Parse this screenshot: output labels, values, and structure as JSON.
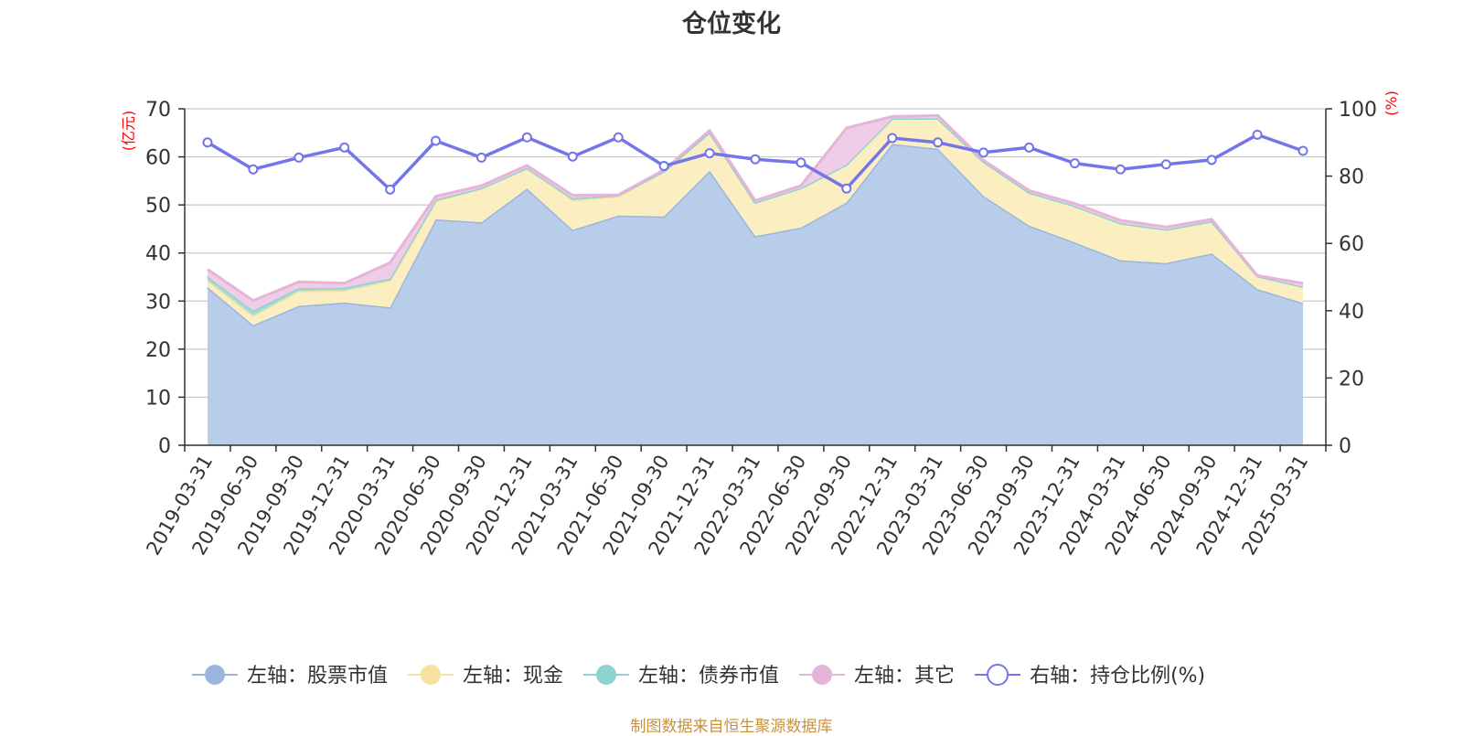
{
  "chart_data": {
    "type": "area",
    "title": "仓位变化",
    "source_note": "制图数据来自恒生聚源数据库",
    "left_axis_label": "(亿元)",
    "right_axis_label": "(%)",
    "left_ylim": [
      0,
      70
    ],
    "left_ticks": [
      0,
      10,
      20,
      30,
      40,
      50,
      60,
      70
    ],
    "right_ylim": [
      0,
      100
    ],
    "right_ticks": [
      0,
      20,
      40,
      60,
      80,
      100
    ],
    "grid": true,
    "legend_position": "bottom",
    "categories": [
      "2019-03-31",
      "2019-06-30",
      "2019-09-30",
      "2019-12-31",
      "2020-03-31",
      "2020-06-30",
      "2020-09-30",
      "2020-12-31",
      "2021-03-31",
      "2021-06-30",
      "2021-09-30",
      "2021-12-31",
      "2022-03-31",
      "2022-06-30",
      "2022-09-30",
      "2022-12-31",
      "2023-03-31",
      "2023-06-30",
      "2023-09-30",
      "2023-12-31",
      "2024-03-31",
      "2024-06-30",
      "2024-09-30",
      "2024-12-31",
      "2025-03-31"
    ],
    "series": [
      {
        "name": "左轴：股票市值",
        "axis": "left",
        "kind": "stacked-area",
        "color": "#9bb5df",
        "fill": "#b8cdea",
        "values": [
          32.9,
          25.0,
          29.0,
          29.7,
          28.7,
          47.0,
          46.4,
          53.4,
          44.8,
          47.8,
          47.6,
          57.1,
          43.5,
          45.3,
          50.5,
          62.7,
          61.7,
          51.9,
          45.7,
          42.2,
          38.5,
          37.9,
          39.9,
          32.5,
          29.6
        ]
      },
      {
        "name": "左轴：现金",
        "axis": "left",
        "kind": "stacked-area",
        "color": "#f7e1a0",
        "fill": "#fbefc2",
        "values": [
          1.4,
          2.0,
          3.1,
          2.5,
          5.6,
          3.8,
          7.1,
          4.3,
          6.2,
          4.0,
          9.4,
          8.0,
          7.0,
          8.2,
          7.9,
          5.3,
          6.3,
          7.1,
          6.9,
          7.6,
          7.7,
          7.0,
          6.7,
          2.7,
          3.4
        ]
      },
      {
        "name": "左轴：债券市值",
        "axis": "left",
        "kind": "stacked-area",
        "color": "#8fd3d0",
        "fill": "#a7dcd9",
        "values": [
          0.8,
          1.0,
          0.6,
          0.6,
          0.4,
          0.3,
          0.0,
          0.0,
          0.4,
          0.2,
          0.0,
          0.0,
          0.0,
          0.0,
          0.0,
          0.0,
          0.0,
          0.0,
          0.0,
          0.0,
          0.0,
          0.0,
          0.0,
          0.0,
          0.0
        ]
      },
      {
        "name": "左轴：其它",
        "axis": "left",
        "kind": "stacked-area",
        "color": "#e6b3d9",
        "fill": "#efcde6",
        "values": [
          1.5,
          2.1,
          1.3,
          0.9,
          3.3,
          0.7,
          0.5,
          0.5,
          0.6,
          0.1,
          0.3,
          0.4,
          0.4,
          0.5,
          7.6,
          0.4,
          0.6,
          0.3,
          0.4,
          0.5,
          0.6,
          0.5,
          0.4,
          0.1,
          0.7
        ]
      },
      {
        "name": "右轴：持仓比例(%)",
        "axis": "right",
        "kind": "line",
        "color": "#7475ea",
        "values": [
          90.0,
          82.0,
          85.5,
          88.5,
          76.0,
          90.5,
          85.5,
          91.5,
          85.8,
          91.5,
          83.0,
          86.8,
          85.0,
          84.0,
          76.3,
          91.3,
          90.0,
          87.0,
          88.5,
          83.8,
          82.0,
          83.5,
          84.8,
          92.3,
          87.5
        ]
      }
    ]
  }
}
